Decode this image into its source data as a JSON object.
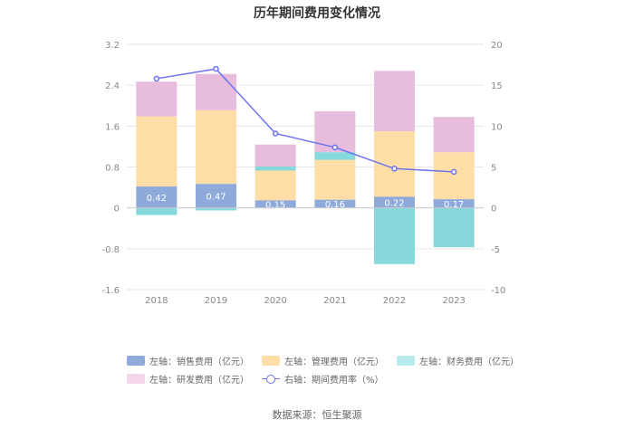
{
  "chart_data": {
    "type": "bar",
    "title": "历年期间费用变化情况",
    "categories": [
      "2018",
      "2019",
      "2020",
      "2021",
      "2022",
      "2023"
    ],
    "left_axis": {
      "ylim": [
        -1.6,
        3.2
      ],
      "ticks": [
        "3.2",
        "2.4",
        "1.6",
        "0.8",
        "0",
        "-0.8",
        "-1.6"
      ]
    },
    "right_axis": {
      "ylim": [
        -10,
        20
      ],
      "ticks": [
        "20",
        "15",
        "10",
        "5",
        "0",
        "-5",
        "-10"
      ]
    },
    "series": [
      {
        "name": "左轴：销售费用（亿元）",
        "color": "#8eaadb",
        "values": [
          0.42,
          0.47,
          0.15,
          0.16,
          0.22,
          0.17
        ],
        "labels": [
          "0.42",
          "0.47",
          "0.15",
          "0.16",
          "0.22",
          "0.17"
        ]
      },
      {
        "name": "左轴：管理费用（亿元）",
        "color": "#ffdda6",
        "values": [
          1.37,
          1.44,
          0.58,
          0.78,
          1.28,
          0.92
        ]
      },
      {
        "name": "左轴：财务费用（亿元）",
        "color": "#86d8dc",
        "values": [
          -0.14,
          -0.05,
          0.08,
          0.15,
          -1.1,
          -0.77
        ]
      },
      {
        "name": "左轴：研发费用（亿元）",
        "color": "#e8bcdc",
        "values": [
          0.68,
          0.71,
          0.43,
          0.8,
          1.18,
          0.69
        ]
      },
      {
        "name": "右轴：期间费用率（%）",
        "color": "#6b73ee",
        "type": "line",
        "axis": "right",
        "values": [
          15.8,
          17.0,
          9.1,
          7.4,
          4.8,
          4.4
        ]
      }
    ]
  },
  "source": "数据来源：恒生聚源"
}
